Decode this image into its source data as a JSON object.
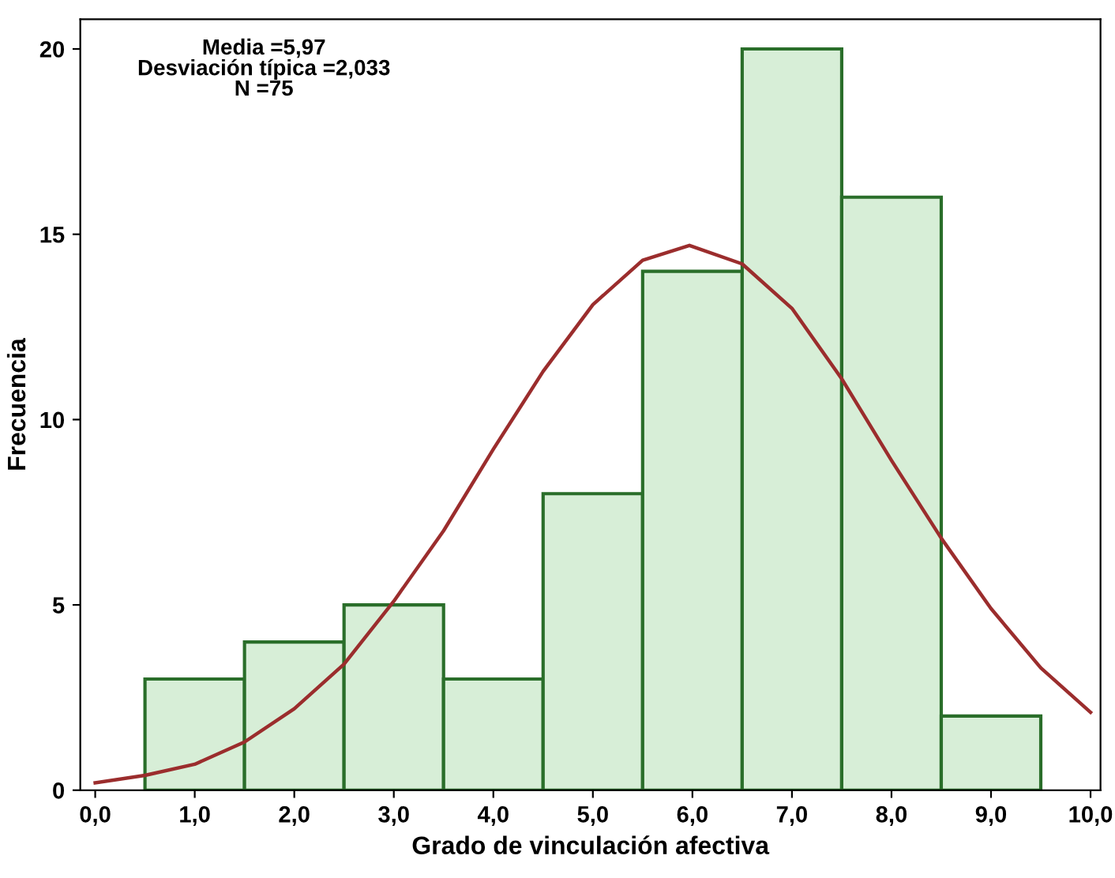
{
  "chart_data": {
    "type": "histogram",
    "xlabel": "Grado de vinculación afectiva",
    "ylabel": "Frecuencia",
    "annotations": [
      "Media =5,97\nDesviación típica =2,033\nN =75"
    ],
    "bins": [
      0.5,
      1.5,
      2.5,
      3.5,
      4.5,
      5.5,
      6.5,
      7.5,
      8.5,
      9.5
    ],
    "values": [
      3,
      4,
      5,
      3,
      8,
      14,
      20,
      16,
      2
    ],
    "color": "#d7eed7",
    "series": [
      {
        "type": "line",
        "color": "#9b2d2d",
        "x": [
          0,
          0.5,
          1,
          1.5,
          2,
          2.5,
          3,
          3.5,
          4,
          4.5,
          5,
          5.5,
          5.97,
          6.5,
          7,
          7.5,
          8,
          8.5,
          9,
          9.5,
          10
        ],
        "values": [
          0.2,
          0.4,
          0.7,
          1.3,
          2.2,
          3.4,
          5.1,
          7.0,
          9.2,
          11.3,
          13.1,
          14.3,
          14.7,
          14.2,
          13.0,
          11.1,
          8.9,
          6.8,
          4.9,
          3.3,
          2.1
        ]
      }
    ],
    "xlim": [
      -0.15,
      10.1
    ],
    "ylim": [
      0,
      20.8
    ],
    "xticks": [
      {
        "value": 0,
        "label": "0,0"
      },
      {
        "value": 1,
        "label": "1,0"
      },
      {
        "value": 2,
        "label": "2,0"
      },
      {
        "value": 3,
        "label": "3,0"
      },
      {
        "value": 4,
        "label": "4,0"
      },
      {
        "value": 5,
        "label": "5,0"
      },
      {
        "value": 6,
        "label": "6,0"
      },
      {
        "value": 7,
        "label": "7,0"
      },
      {
        "value": 8,
        "label": "8,0"
      },
      {
        "value": 9,
        "label": "9,0"
      },
      {
        "value": 10,
        "label": "10,0"
      }
    ],
    "yticks": [
      0,
      5,
      10,
      15,
      20
    ],
    "grid": false,
    "legend": false
  }
}
